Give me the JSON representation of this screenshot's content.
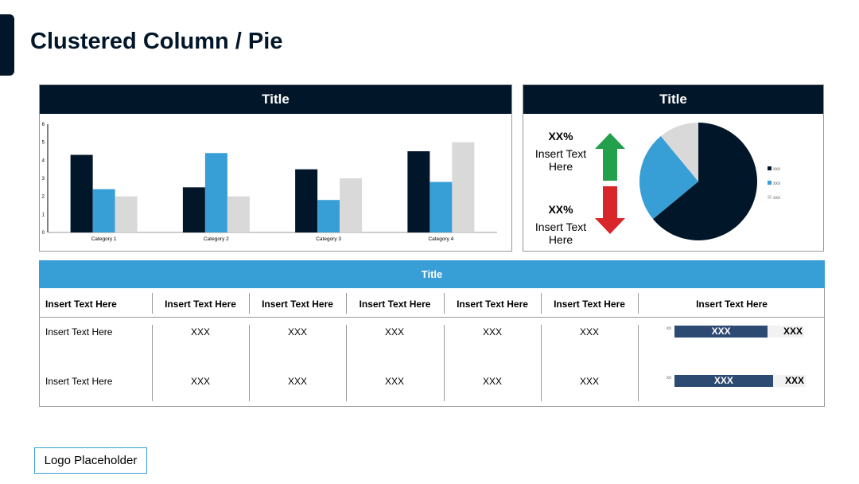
{
  "page": {
    "title": "Clustered Column / Pie",
    "logo": "Logo Placeholder"
  },
  "bar_panel": {
    "title": "Title"
  },
  "pie_panel": {
    "title": "Title",
    "kpis": [
      {
        "value": "XX%",
        "text": "Insert Text Here",
        "direction": "up",
        "color": "#22a04b"
      },
      {
        "value": "XX%",
        "text": "Insert Text Here",
        "direction": "down",
        "color": "#d9262a"
      }
    ]
  },
  "chart_data": [
    {
      "type": "bar",
      "categories": [
        "Category 1",
        "Category 2",
        "Category 3",
        "Category 4"
      ],
      "series": [
        {
          "values": [
            4.3,
            2.5,
            3.5,
            4.5
          ],
          "color": "#021629"
        },
        {
          "values": [
            2.4,
            4.4,
            1.8,
            2.8
          ],
          "color": "#389ed6"
        },
        {
          "values": [
            2.0,
            2.0,
            3.0,
            5.0
          ],
          "color": "#d9d9d9"
        }
      ],
      "ylim": [
        0,
        6
      ],
      "yticks": [
        "0",
        "1",
        "2",
        "3",
        "4",
        "5",
        "6"
      ],
      "grid": false
    },
    {
      "type": "pie",
      "labels": [
        "xxx",
        "xxx",
        "xxx"
      ],
      "values": [
        64,
        25,
        11
      ],
      "colors": [
        "#021629",
        "#389ed6",
        "#d9d9d9"
      ],
      "legend": "right"
    }
  ],
  "table": {
    "title": "Title",
    "headers": [
      "Insert Text Here",
      "Insert Text Here",
      "Insert Text Here",
      "Insert Text Here",
      "Insert Text Here",
      "Insert Text Here",
      "Insert Text Here"
    ],
    "rows": [
      {
        "cells": [
          "Insert Text Here",
          "XXX",
          "XXX",
          "XXX",
          "XXX",
          "XXX"
        ],
        "bar": {
          "small": "xx",
          "label": "XXX",
          "value": "XXX",
          "percent": 72
        }
      },
      {
        "cells": [
          "Insert Text Here",
          "XXX",
          "XXX",
          "XXX",
          "XXX",
          "XXX"
        ],
        "bar": {
          "small": "xx",
          "label": "XXX",
          "value": "XXX",
          "percent": 75
        }
      }
    ]
  }
}
